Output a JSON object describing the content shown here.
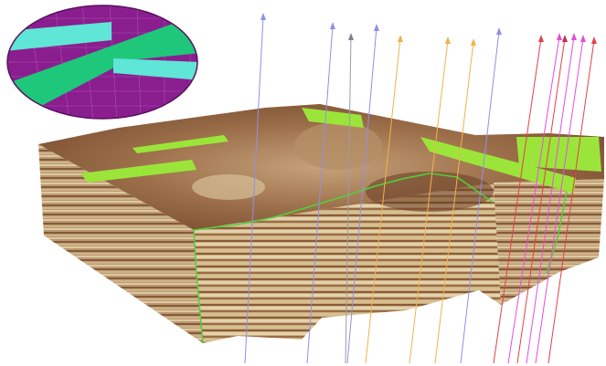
{
  "scene": {
    "colors": {
      "background": "#ffffff",
      "block_light": "#d8c49a",
      "block_mid": "#b08a5c",
      "block_dark": "#7a4f2e",
      "fault_surface": "#9be53a",
      "fault_trace": "#4fd13a",
      "well_blue": "#8f8fe8",
      "well_orange": "#f2b24a",
      "well_red": "#e2404a",
      "well_magenta": "#e64ed8",
      "inset_purple": "#8a1e8f",
      "inset_green": "#1fc77a",
      "inset_cyan": "#5fe6d6"
    },
    "wells": [
      {
        "color": "blue"
      },
      {
        "color": "blue"
      },
      {
        "color": "grey"
      },
      {
        "color": "blue"
      },
      {
        "color": "orange"
      },
      {
        "color": "orange"
      },
      {
        "color": "orange"
      },
      {
        "color": "blue"
      },
      {
        "color": "red"
      },
      {
        "color": "red"
      },
      {
        "color": "magenta"
      },
      {
        "color": "magenta"
      },
      {
        "color": "magenta"
      },
      {
        "color": "red"
      }
    ]
  }
}
